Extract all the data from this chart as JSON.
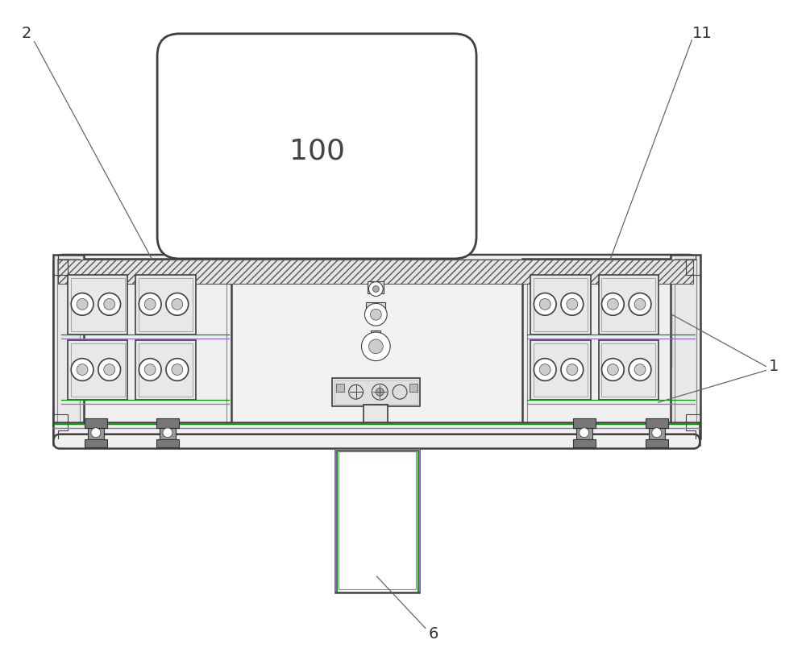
{
  "bg_color": "#ffffff",
  "line_color": "#404040",
  "light_line": "#888888",
  "lighter_line": "#bbbbbb",
  "green_color": "#009900",
  "purple_color": "#9966cc",
  "ann_color": "#666666"
}
